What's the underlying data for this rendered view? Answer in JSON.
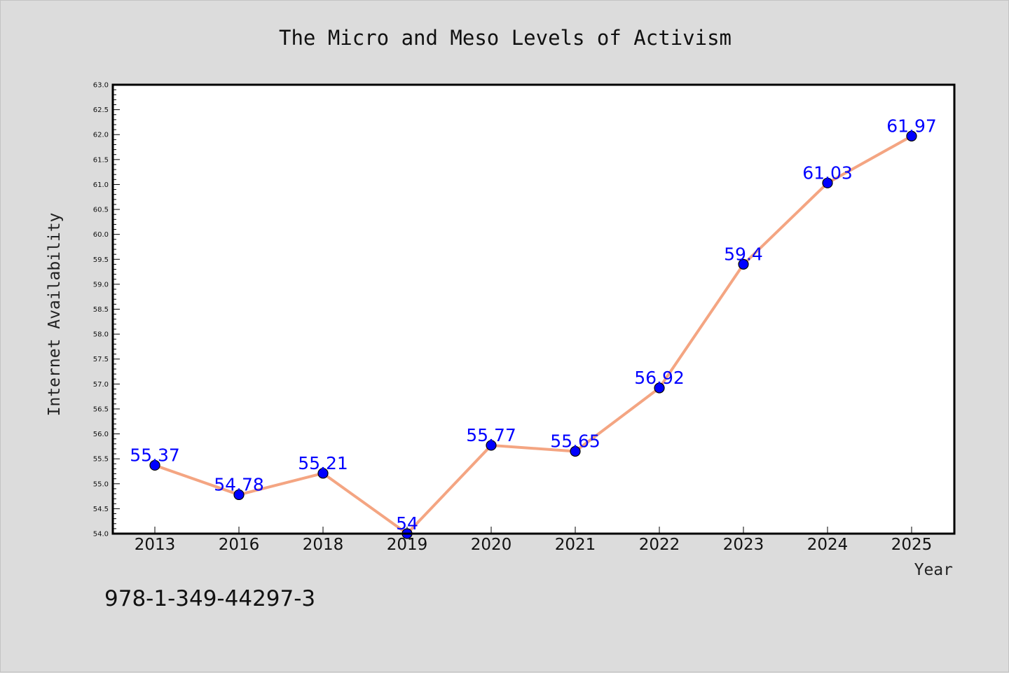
{
  "chart_data": {
    "type": "line",
    "title": "The Micro and Meso Levels of Activism",
    "xlabel": "Year",
    "ylabel": "Internet Availability",
    "categories": [
      "2013",
      "2016",
      "2018",
      "2019",
      "2020",
      "2021",
      "2022",
      "2023",
      "2024",
      "2025"
    ],
    "series": [
      {
        "values": [
          55.37,
          54.78,
          55.21,
          54,
          55.77,
          55.65,
          56.92,
          59.4,
          61.03,
          61.97
        ],
        "data_labels": [
          "55.37",
          "54.78",
          "55.21",
          "54",
          "55.77",
          "55.65",
          "56.92",
          "59.4",
          "61.03",
          "61.97"
        ],
        "line_color": "#f4a582",
        "marker_color": "#0000ff"
      }
    ],
    "ylim": [
      54.0,
      63.0
    ],
    "yticks": [
      "54.0",
      "54.5",
      "55.0",
      "55.5",
      "56.0",
      "56.5",
      "57.0",
      "57.5",
      "58.0",
      "58.5",
      "59.0",
      "59.5",
      "60.0",
      "60.5",
      "61.0",
      "61.5",
      "62.0",
      "62.5",
      "63.0"
    ],
    "grid": false,
    "legend": "none"
  },
  "footnote": "978-1-349-44297-3",
  "colors": {
    "background": "#dcdcdc",
    "plot_background": "#ffffff",
    "line": "#f4a582",
    "marker": "#0000ff",
    "data_label": "#0000ff"
  }
}
